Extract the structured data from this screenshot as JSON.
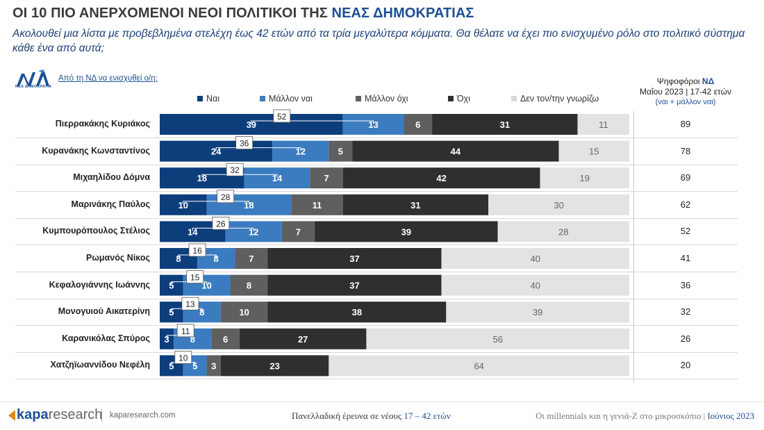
{
  "header": {
    "title_prefix": "ΟΙ 10 ΠΙΟ ΑΝΕΡΧΟΜΕΝΟΙ ΝΕΟΙ ΠΟΛΙΤΙΚΟΙ ΤΗΣ ",
    "title_highlight": "ΝΕΑΣ ΔΗΜΟΚΡΑΤΙΑΣ",
    "subtitle": "Ακολουθεί μια λίστα με προβεβλημένα στελέχη έως 42 ετών από τα τρία μεγαλύτερα κόμματα. Θα θέλατε να έχει πιο ενισχυμένο ρόλο στο πολιτικό σύστημα κάθε ένα από αυτά;",
    "logo_sub": "ΝΕΑ ΔΗΜΟΚΡΑΤΙΑ",
    "question": "Από τη ΝΔ να ενισχυθεί ο/η:"
  },
  "side_header": {
    "line1_prefix": "Ψηφοφόροι ",
    "line1_highlight": "ΝΔ",
    "line2": "Μαΐου 2023 | 17-42 ετών",
    "line3": "(ναι + μάλλον ναι)"
  },
  "colors": {
    "nai": "#0d3e7c",
    "mallon_nai": "#3b7cc0",
    "mallon_oxi": "#5f5f5f",
    "oxi": "#2f2f2f",
    "den_gnorizo": "#e3e3e3",
    "accent": "#1c4f93"
  },
  "chart_data": {
    "type": "bar",
    "orientation": "horizontal",
    "stacked": true,
    "xlim": [
      0,
      100
    ],
    "legend_position": "top",
    "categories": [
      "Πιερρακάκης Κυριάκος",
      "Κυρανάκης Κωνσταντίνος",
      "Μιχαηλίδου Δόμνα",
      "Μαρινάκης Παύλος",
      "Κυμπουρόπουλος Στέλιος",
      "Ρωμανός Νίκος",
      "Κεφαλογιάννης Ιωάννης",
      "Μονογυιού Αικατερίνη",
      "Καρανικόλας Σπύρος",
      "Χατζηϊωαννίδου Νεφέλη"
    ],
    "series": [
      {
        "name": "Ναι",
        "values": [
          39,
          24,
          18,
          10,
          14,
          8,
          5,
          5,
          3,
          5
        ]
      },
      {
        "name": "Μάλλον ναι",
        "values": [
          13,
          12,
          14,
          18,
          12,
          8,
          10,
          8,
          8,
          5
        ]
      },
      {
        "name": "Μάλλον όχι",
        "values": [
          6,
          5,
          7,
          11,
          7,
          7,
          8,
          10,
          6,
          3
        ]
      },
      {
        "name": "Όχι",
        "values": [
          31,
          44,
          42,
          31,
          39,
          37,
          37,
          38,
          27,
          23
        ]
      },
      {
        "name": "Δεν τον/την γνωρίζω",
        "values": [
          11,
          15,
          19,
          30,
          28,
          40,
          40,
          39,
          56,
          64
        ]
      }
    ],
    "combined_labels": [
      52,
      36,
      32,
      28,
      26,
      16,
      15,
      13,
      11,
      10
    ],
    "nd_voters": [
      89,
      78,
      69,
      62,
      52,
      41,
      36,
      32,
      26,
      20
    ]
  },
  "footer": {
    "brand_bold": "kapa",
    "brand_light": "research",
    "brand_url": "kaparesearch.com",
    "mid_prefix": "Πανελλαδική έρευνα σε νέους ",
    "mid_highlight": "17 – 42 ετών",
    "right_prefix": "Οι millennials και η γενιά-Ζ στο μικροσκόπιο | ",
    "right_highlight": "Ιούνιος 2023"
  }
}
